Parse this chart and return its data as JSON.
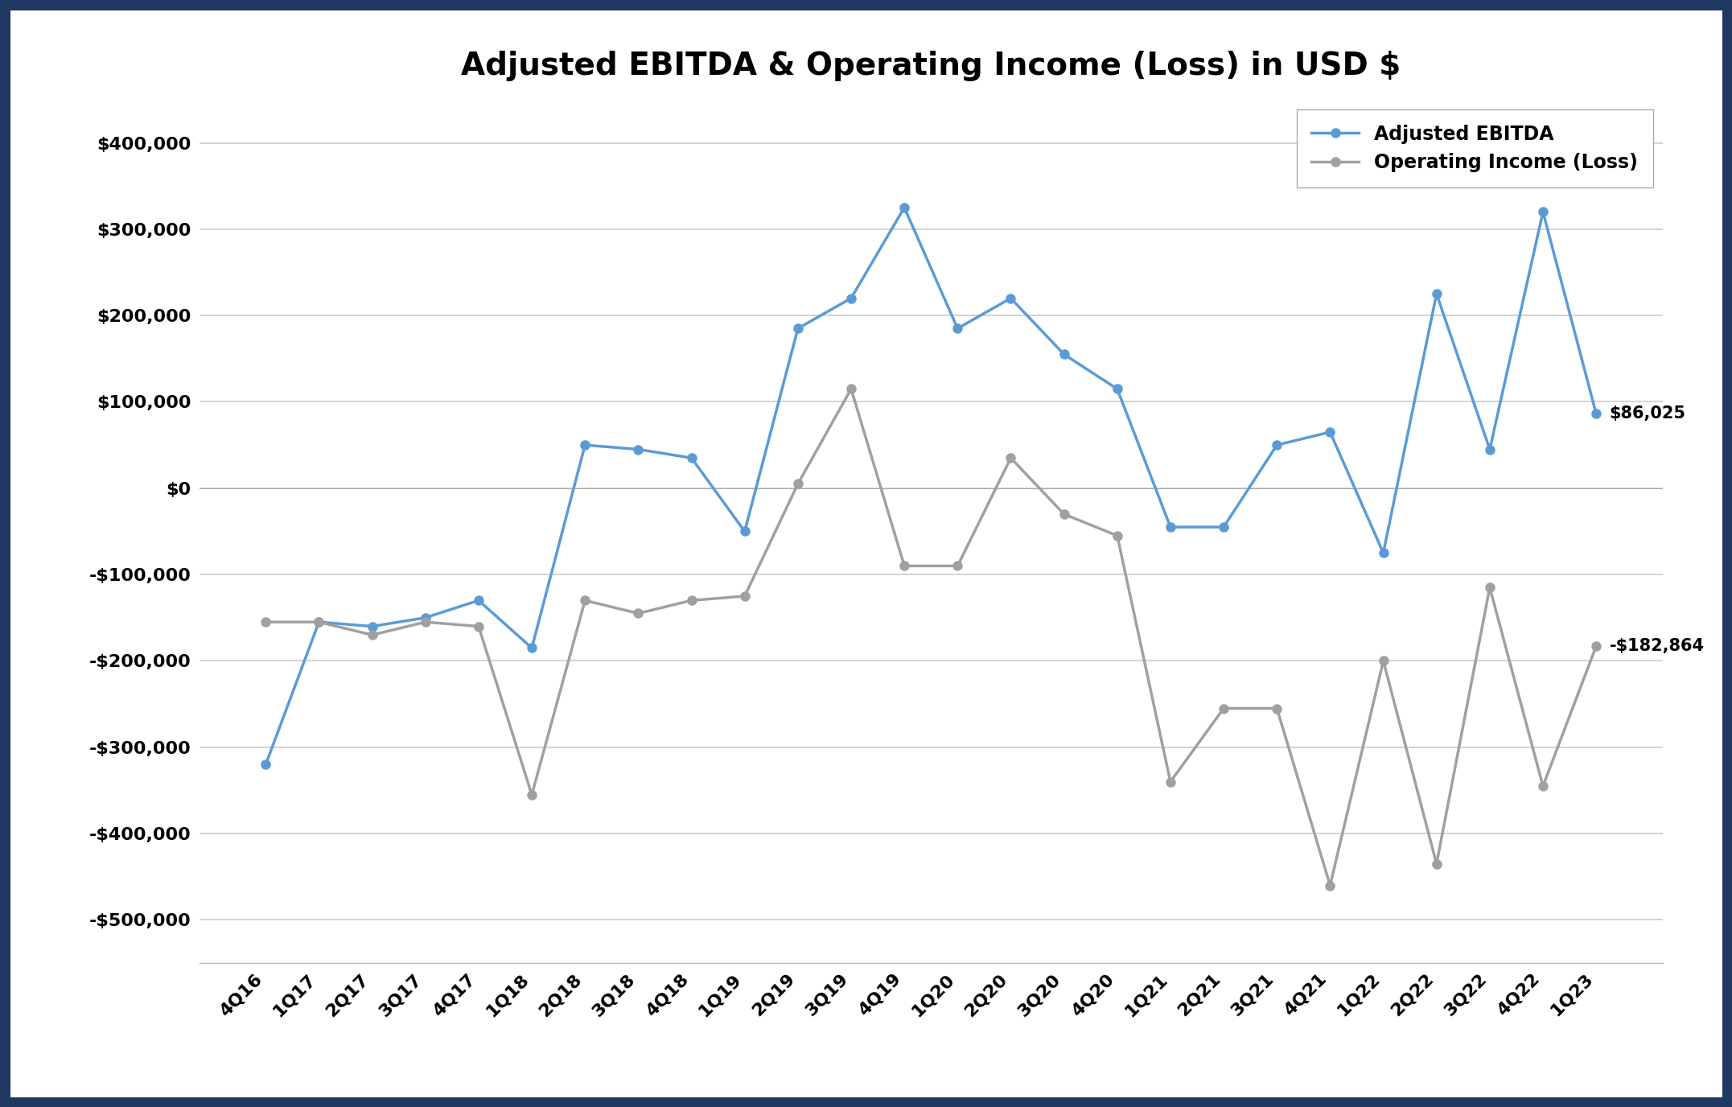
{
  "title": "Adjusted EBITDA & Operating Income (Loss) in USD $",
  "categories": [
    "4Q16",
    "1Q17",
    "2Q17",
    "3Q17",
    "4Q17",
    "1Q18",
    "2Q18",
    "3Q18",
    "4Q18",
    "1Q19",
    "2Q19",
    "3Q19",
    "4Q19",
    "1Q20",
    "2Q20",
    "3Q20",
    "4Q20",
    "1Q21",
    "2Q21",
    "3Q21",
    "4Q21",
    "1Q22",
    "2Q22",
    "3Q22",
    "4Q22",
    "1Q23"
  ],
  "ebitda": [
    -320000,
    -155000,
    -160000,
    -150000,
    -130000,
    -185000,
    50000,
    45000,
    35000,
    -50000,
    185000,
    220000,
    325000,
    185000,
    220000,
    155000,
    115000,
    -45000,
    -45000,
    50000,
    65000,
    -75000,
    225000,
    45000,
    320000,
    86025
  ],
  "op_income": [
    -155000,
    -155000,
    -170000,
    -155000,
    -160000,
    -355000,
    -130000,
    -145000,
    -130000,
    -125000,
    5000,
    115000,
    -90000,
    -90000,
    35000,
    -30000,
    -55000,
    -340000,
    -255000,
    -255000,
    -460000,
    -200000,
    -435000,
    -115000,
    -345000,
    -182864
  ],
  "ebitda_color": "#5B9BD5",
  "op_income_color": "#A0A0A0",
  "plot_bg_color": "#FFFFFF",
  "figure_bg_color": "#FFFFFF",
  "border_color": "#1F3864",
  "border_width": 18,
  "ylim_min": -550000,
  "ylim_max": 450000,
  "last_ebitda_label": "$86,025",
  "last_op_income_label": "-$182,864",
  "legend_labels": [
    "Adjusted EBITDA",
    "Operating Income (Loss)"
  ],
  "title_fontsize": 28,
  "tick_fontsize": 16,
  "legend_fontsize": 17,
  "annotation_fontsize": 15,
  "line_width": 2.5,
  "marker_size": 8
}
